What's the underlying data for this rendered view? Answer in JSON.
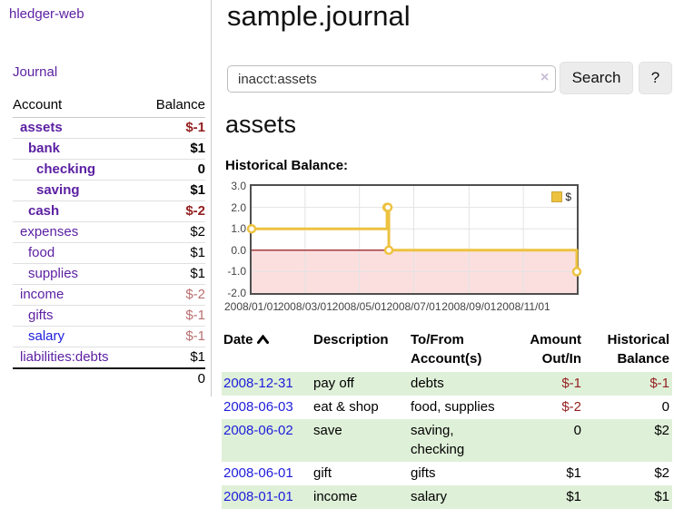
{
  "app": {
    "brand": "hledger-web"
  },
  "sidebar": {
    "nav_journal": "Journal",
    "accounts": {
      "headers": {
        "account": "Account",
        "balance": "Balance"
      },
      "rows": [
        {
          "name": "assets",
          "balance": "$-1",
          "indent": 1,
          "bold": true,
          "link": "purple"
        },
        {
          "name": "bank",
          "balance": "$1",
          "indent": 2,
          "bold": true,
          "link": "purple"
        },
        {
          "name": "checking",
          "balance": "0",
          "indent": 3,
          "bold": true,
          "link": "purple"
        },
        {
          "name": "saving",
          "balance": "$1",
          "indent": 3,
          "bold": true,
          "link": "purple"
        },
        {
          "name": "cash",
          "balance": "$-2",
          "indent": 2,
          "bold": true,
          "link": "purple"
        },
        {
          "name": "expenses",
          "balance": "$2",
          "indent": 1,
          "bold": false,
          "link": "purple"
        },
        {
          "name": "food",
          "balance": "$1",
          "indent": 2,
          "bold": false,
          "link": "purple"
        },
        {
          "name": "supplies",
          "balance": "$1",
          "indent": 2,
          "bold": false,
          "link": "purple"
        },
        {
          "name": "income",
          "balance": "$-2",
          "indent": 1,
          "bold": false,
          "link": "purple"
        },
        {
          "name": "gifts",
          "balance": "$-1",
          "indent": 2,
          "bold": false,
          "link": "purple"
        },
        {
          "name": "salary",
          "balance": "$-1",
          "indent": 2,
          "bold": false,
          "link": "blue"
        },
        {
          "name": "liabilities:debts",
          "balance": "$1",
          "indent": 1,
          "bold": false,
          "link": "purple"
        }
      ],
      "total": "0"
    }
  },
  "main": {
    "title": "sample.journal",
    "search": {
      "value": "inacct:assets",
      "clear_icon": "×",
      "button": "Search",
      "help": "?"
    },
    "account_heading": "assets",
    "chart_label": "Historical Balance:"
  },
  "chart_data": {
    "type": "line",
    "style": "step-after",
    "series": [
      {
        "name": "$",
        "points": [
          {
            "x": "2008-01-01",
            "y": 1
          },
          {
            "x": "2008-06-01",
            "y": 2
          },
          {
            "x": "2008-06-02",
            "y": 2
          },
          {
            "x": "2008-06-03",
            "y": 0
          },
          {
            "x": "2008-12-31",
            "y": -1
          }
        ]
      }
    ],
    "xlim": [
      "2008-01-01",
      "2008-12-31"
    ],
    "ylim": [
      -2,
      3
    ],
    "yticks": [
      3.0,
      2.0,
      1.0,
      0.0,
      -1.0,
      -2.0
    ],
    "xticks": [
      "2008/01/01",
      "2008/03/01",
      "2008/05/01",
      "2008/07/01",
      "2008/09/01",
      "2008/11/01"
    ],
    "legend": {
      "position": "top-right",
      "label": "$"
    },
    "grid": true,
    "colors": {
      "line": "#edc240",
      "marker_fill": "#ffffff",
      "negative_zone": "#f8c0c0",
      "zero_line": "#8b0000",
      "grid": "#e3e3e3",
      "border": "#4f4f4f"
    }
  },
  "register": {
    "headers": {
      "date": "Date",
      "description": "Description",
      "accounts": "To/From Account(s)",
      "amount": "Amount Out/In",
      "balance": "Historical Balance"
    },
    "rows": [
      {
        "date": "2008-12-31",
        "description": "pay off",
        "accounts": "debts",
        "amount": "$-1",
        "balance": "$-1"
      },
      {
        "date": "2008-06-03",
        "description": "eat & shop",
        "accounts": "food, supplies",
        "amount": "$-2",
        "balance": "0"
      },
      {
        "date": "2008-06-02",
        "description": "save",
        "accounts": "saving, checking",
        "amount": "0",
        "balance": "$2"
      },
      {
        "date": "2008-06-01",
        "description": "gift",
        "accounts": "gifts",
        "amount": "$1",
        "balance": "$2"
      },
      {
        "date": "2008-01-01",
        "description": "income",
        "accounts": "salary",
        "amount": "$1",
        "balance": "$1"
      }
    ]
  }
}
